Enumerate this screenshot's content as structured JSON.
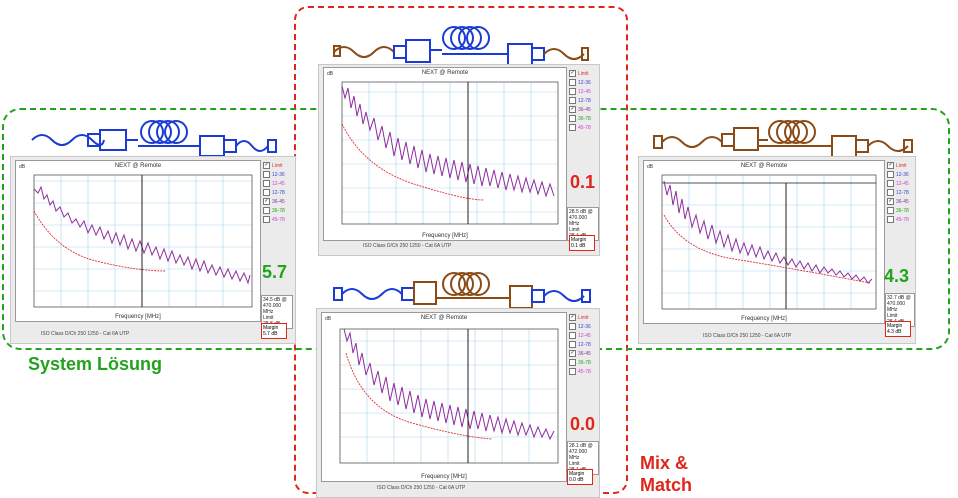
{
  "colors": {
    "green": "#23a31c",
    "red": "#e0261b",
    "blue_cable": "#1a3bd6",
    "brown_cable": "#8a4b16",
    "trace": "#8e2e9c",
    "limit": "#e03030",
    "cursor": "#333333"
  },
  "labels": {
    "system": "System Lösung",
    "mix_line1": "Mix &",
    "mix_line2": "Match"
  },
  "panels": {
    "left": {
      "title": "NEXT @ Remote",
      "xlabel": "Frequency [MHz]",
      "ylabel": "dB",
      "value": "5.7",
      "footer": "ISO Class D/Ch 250 1250 - Cat 6A UTP",
      "legend": [
        {
          "label": "Limit",
          "checked": true,
          "color": "#e03030"
        },
        {
          "label": "12-36",
          "checked": false,
          "color": "#3b3bd6"
        },
        {
          "label": "12-45",
          "checked": false,
          "color": "#d63bd6"
        },
        {
          "label": "12-78",
          "checked": false,
          "color": "#3b3bd6"
        },
        {
          "label": "36-45",
          "checked": true,
          "color": "#8e2e9c"
        },
        {
          "label": "36-78",
          "checked": false,
          "color": "#23a31c"
        },
        {
          "label": "45-78",
          "checked": false,
          "color": "#d63bd6"
        }
      ],
      "info": [
        "34.5 dB @",
        "470.000 MHz",
        "Limit",
        "28.8 dB"
      ],
      "margin": [
        "Margin",
        "5.7 dB"
      ]
    },
    "center_top": {
      "title": "NEXT @ Remote",
      "xlabel": "Frequency [MHz]",
      "ylabel": "dB",
      "value": "0.1",
      "footer": "ISO Class D/Ch 250 1250 - Cat 6A UTP",
      "legend": [
        {
          "label": "Limit",
          "checked": true,
          "color": "#e03030"
        },
        {
          "label": "12-36",
          "checked": false,
          "color": "#3b3bd6"
        },
        {
          "label": "12-45",
          "checked": false,
          "color": "#d63bd6"
        },
        {
          "label": "12-78",
          "checked": false,
          "color": "#3b3bd6"
        },
        {
          "label": "36-45",
          "checked": true,
          "color": "#8e2e9c"
        },
        {
          "label": "36-78",
          "checked": false,
          "color": "#23a31c"
        },
        {
          "label": "45-78",
          "checked": false,
          "color": "#d63bd6"
        }
      ],
      "info": [
        "28.5 dB @",
        "470.000 MHz",
        "Limit",
        "28.4 dB"
      ],
      "margin": [
        "Margin",
        "0.1 dB"
      ]
    },
    "center_bottom": {
      "title": "NEXT @ Remote",
      "xlabel": "Frequency [MHz]",
      "ylabel": "dB",
      "value": "0.0",
      "footer": "ISO Class D/Ch 250 1250 - Cat 6A UTP",
      "legend": [
        {
          "label": "Limit",
          "checked": true,
          "color": "#e03030"
        },
        {
          "label": "12-36",
          "checked": false,
          "color": "#3b3bd6"
        },
        {
          "label": "12-45",
          "checked": false,
          "color": "#d63bd6"
        },
        {
          "label": "12-78",
          "checked": false,
          "color": "#3b3bd6"
        },
        {
          "label": "36-45",
          "checked": true,
          "color": "#8e2e9c"
        },
        {
          "label": "36-78",
          "checked": false,
          "color": "#23a31c"
        },
        {
          "label": "45-78",
          "checked": false,
          "color": "#d63bd6"
        }
      ],
      "info": [
        "28.1 dB @",
        "472.000 MHz",
        "Limit",
        "28.1 dB"
      ],
      "margin": [
        "Margin",
        "0.0 dB"
      ]
    },
    "right": {
      "title": "NEXT @ Remote",
      "xlabel": "Frequency [MHz]",
      "ylabel": "dB",
      "value": "4.3",
      "footer": "ISO Class D/Ch 250 1250 - Cat 6A UTP",
      "legend": [
        {
          "label": "Limit",
          "checked": true,
          "color": "#e03030"
        },
        {
          "label": "12-36",
          "checked": false,
          "color": "#3b3bd6"
        },
        {
          "label": "12-45",
          "checked": false,
          "color": "#d63bd6"
        },
        {
          "label": "12-78",
          "checked": false,
          "color": "#3b3bd6"
        },
        {
          "label": "36-45",
          "checked": true,
          "color": "#8e2e9c"
        },
        {
          "label": "36-78",
          "checked": false,
          "color": "#23a31c"
        },
        {
          "label": "45-78",
          "checked": false,
          "color": "#d63bd6"
        }
      ],
      "info": [
        "32.7 dB @",
        "470.000 MHz",
        "Limit",
        "28.4 dB"
      ],
      "margin": [
        "Margin",
        "4.3 dB"
      ]
    }
  },
  "axes": {
    "x_ticks": [
      "0",
      "100",
      "200",
      "300",
      "400",
      "500",
      "600",
      "700",
      "800"
    ],
    "y_ticks": [
      "90",
      "80",
      "70",
      "60",
      "50",
      "40",
      "30",
      "20",
      "10"
    ]
  }
}
